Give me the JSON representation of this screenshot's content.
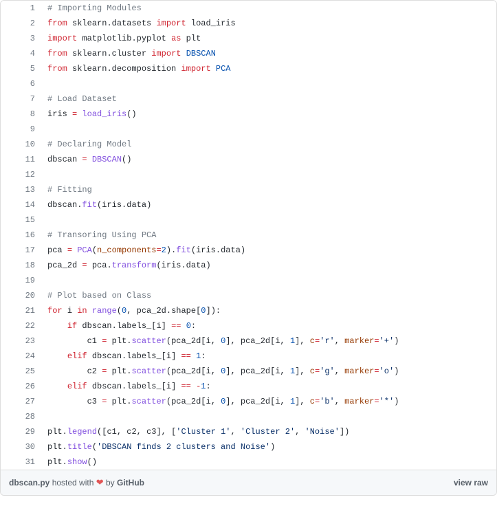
{
  "syntax_colors": {
    "comment": "#6e7781",
    "keyword": "#cf222e",
    "entity": "#8250df",
    "variable": "#953800",
    "constant": "#0550ae",
    "string": "#0a3069",
    "text": "#24292f",
    "linenum": "#6e7781",
    "meta_bg": "#f6f8fa",
    "border": "#ddd"
  },
  "lines": [
    [
      {
        "t": "# Importing Modules",
        "c": "pl-c"
      }
    ],
    [
      {
        "t": "from",
        "c": "pl-k"
      },
      {
        "t": " "
      },
      {
        "t": "sklearn",
        "c": "pl-smi"
      },
      {
        "t": "."
      },
      {
        "t": "datasets",
        "c": "pl-smi"
      },
      {
        "t": " "
      },
      {
        "t": "import",
        "c": "pl-k"
      },
      {
        "t": " "
      },
      {
        "t": "load_iris",
        "c": "pl-smi"
      }
    ],
    [
      {
        "t": "import",
        "c": "pl-k"
      },
      {
        "t": " "
      },
      {
        "t": "matplotlib",
        "c": "pl-smi"
      },
      {
        "t": "."
      },
      {
        "t": "pyplot",
        "c": "pl-smi"
      },
      {
        "t": " "
      },
      {
        "t": "as",
        "c": "pl-k"
      },
      {
        "t": " "
      },
      {
        "t": "plt",
        "c": "pl-smi"
      }
    ],
    [
      {
        "t": "from",
        "c": "pl-k"
      },
      {
        "t": " "
      },
      {
        "t": "sklearn",
        "c": "pl-smi"
      },
      {
        "t": "."
      },
      {
        "t": "cluster",
        "c": "pl-smi"
      },
      {
        "t": " "
      },
      {
        "t": "import",
        "c": "pl-k"
      },
      {
        "t": " "
      },
      {
        "t": "DBSCAN",
        "c": "pl-c1"
      }
    ],
    [
      {
        "t": "from",
        "c": "pl-k"
      },
      {
        "t": " "
      },
      {
        "t": "sklearn",
        "c": "pl-smi"
      },
      {
        "t": "."
      },
      {
        "t": "decomposition",
        "c": "pl-smi"
      },
      {
        "t": " "
      },
      {
        "t": "import",
        "c": "pl-k"
      },
      {
        "t": " "
      },
      {
        "t": "PCA",
        "c": "pl-c1"
      }
    ],
    [],
    [
      {
        "t": "# Load Dataset",
        "c": "pl-c"
      }
    ],
    [
      {
        "t": "iris",
        "c": "pl-smi"
      },
      {
        "t": " "
      },
      {
        "t": "=",
        "c": "pl-k"
      },
      {
        "t": " "
      },
      {
        "t": "load_iris",
        "c": "pl-en"
      },
      {
        "t": "()"
      }
    ],
    [],
    [
      {
        "t": "# Declaring Model",
        "c": "pl-c"
      }
    ],
    [
      {
        "t": "dbscan",
        "c": "pl-smi"
      },
      {
        "t": " "
      },
      {
        "t": "=",
        "c": "pl-k"
      },
      {
        "t": " "
      },
      {
        "t": "DBSCAN",
        "c": "pl-en"
      },
      {
        "t": "()"
      }
    ],
    [],
    [
      {
        "t": "# Fitting",
        "c": "pl-c"
      }
    ],
    [
      {
        "t": "dbscan",
        "c": "pl-smi"
      },
      {
        "t": "."
      },
      {
        "t": "fit",
        "c": "pl-en"
      },
      {
        "t": "("
      },
      {
        "t": "iris",
        "c": "pl-smi"
      },
      {
        "t": "."
      },
      {
        "t": "data",
        "c": "pl-smi"
      },
      {
        "t": ")"
      }
    ],
    [],
    [
      {
        "t": "# Transoring Using PCA",
        "c": "pl-c"
      }
    ],
    [
      {
        "t": "pca",
        "c": "pl-smi"
      },
      {
        "t": " "
      },
      {
        "t": "=",
        "c": "pl-k"
      },
      {
        "t": " "
      },
      {
        "t": "PCA",
        "c": "pl-en"
      },
      {
        "t": "("
      },
      {
        "t": "n_components",
        "c": "pl-v"
      },
      {
        "t": "=",
        "c": "pl-k"
      },
      {
        "t": "2",
        "c": "pl-c1"
      },
      {
        "t": ")."
      },
      {
        "t": "fit",
        "c": "pl-en"
      },
      {
        "t": "("
      },
      {
        "t": "iris",
        "c": "pl-smi"
      },
      {
        "t": "."
      },
      {
        "t": "data",
        "c": "pl-smi"
      },
      {
        "t": ")"
      }
    ],
    [
      {
        "t": "pca_2d",
        "c": "pl-smi"
      },
      {
        "t": " "
      },
      {
        "t": "=",
        "c": "pl-k"
      },
      {
        "t": " "
      },
      {
        "t": "pca",
        "c": "pl-smi"
      },
      {
        "t": "."
      },
      {
        "t": "transform",
        "c": "pl-en"
      },
      {
        "t": "("
      },
      {
        "t": "iris",
        "c": "pl-smi"
      },
      {
        "t": "."
      },
      {
        "t": "data",
        "c": "pl-smi"
      },
      {
        "t": ")"
      }
    ],
    [],
    [
      {
        "t": "# Plot based on Class",
        "c": "pl-c"
      }
    ],
    [
      {
        "t": "for",
        "c": "pl-k"
      },
      {
        "t": " "
      },
      {
        "t": "i",
        "c": "pl-smi"
      },
      {
        "t": " "
      },
      {
        "t": "in",
        "c": "pl-k"
      },
      {
        "t": " "
      },
      {
        "t": "range",
        "c": "pl-en"
      },
      {
        "t": "("
      },
      {
        "t": "0",
        "c": "pl-c1"
      },
      {
        "t": ", "
      },
      {
        "t": "pca_2d",
        "c": "pl-smi"
      },
      {
        "t": "."
      },
      {
        "t": "shape",
        "c": "pl-smi"
      },
      {
        "t": "["
      },
      {
        "t": "0",
        "c": "pl-c1"
      },
      {
        "t": "]):"
      }
    ],
    [
      {
        "t": "    "
      },
      {
        "t": "if",
        "c": "pl-k"
      },
      {
        "t": " "
      },
      {
        "t": "dbscan",
        "c": "pl-smi"
      },
      {
        "t": "."
      },
      {
        "t": "labels_",
        "c": "pl-smi"
      },
      {
        "t": "["
      },
      {
        "t": "i",
        "c": "pl-smi"
      },
      {
        "t": "] "
      },
      {
        "t": "==",
        "c": "pl-k"
      },
      {
        "t": " "
      },
      {
        "t": "0",
        "c": "pl-c1"
      },
      {
        "t": ":"
      }
    ],
    [
      {
        "t": "        "
      },
      {
        "t": "c1",
        "c": "pl-smi"
      },
      {
        "t": " "
      },
      {
        "t": "=",
        "c": "pl-k"
      },
      {
        "t": " "
      },
      {
        "t": "plt",
        "c": "pl-smi"
      },
      {
        "t": "."
      },
      {
        "t": "scatter",
        "c": "pl-en"
      },
      {
        "t": "("
      },
      {
        "t": "pca_2d",
        "c": "pl-smi"
      },
      {
        "t": "["
      },
      {
        "t": "i",
        "c": "pl-smi"
      },
      {
        "t": ", "
      },
      {
        "t": "0",
        "c": "pl-c1"
      },
      {
        "t": "], "
      },
      {
        "t": "pca_2d",
        "c": "pl-smi"
      },
      {
        "t": "["
      },
      {
        "t": "i",
        "c": "pl-smi"
      },
      {
        "t": ", "
      },
      {
        "t": "1",
        "c": "pl-c1"
      },
      {
        "t": "], "
      },
      {
        "t": "c",
        "c": "pl-v"
      },
      {
        "t": "=",
        "c": "pl-k"
      },
      {
        "t": "'r'",
        "c": "pl-s"
      },
      {
        "t": ", "
      },
      {
        "t": "marker",
        "c": "pl-v"
      },
      {
        "t": "=",
        "c": "pl-k"
      },
      {
        "t": "'+'",
        "c": "pl-s"
      },
      {
        "t": ")"
      }
    ],
    [
      {
        "t": "    "
      },
      {
        "t": "elif",
        "c": "pl-k"
      },
      {
        "t": " "
      },
      {
        "t": "dbscan",
        "c": "pl-smi"
      },
      {
        "t": "."
      },
      {
        "t": "labels_",
        "c": "pl-smi"
      },
      {
        "t": "["
      },
      {
        "t": "i",
        "c": "pl-smi"
      },
      {
        "t": "] "
      },
      {
        "t": "==",
        "c": "pl-k"
      },
      {
        "t": " "
      },
      {
        "t": "1",
        "c": "pl-c1"
      },
      {
        "t": ":"
      }
    ],
    [
      {
        "t": "        "
      },
      {
        "t": "c2",
        "c": "pl-smi"
      },
      {
        "t": " "
      },
      {
        "t": "=",
        "c": "pl-k"
      },
      {
        "t": " "
      },
      {
        "t": "plt",
        "c": "pl-smi"
      },
      {
        "t": "."
      },
      {
        "t": "scatter",
        "c": "pl-en"
      },
      {
        "t": "("
      },
      {
        "t": "pca_2d",
        "c": "pl-smi"
      },
      {
        "t": "["
      },
      {
        "t": "i",
        "c": "pl-smi"
      },
      {
        "t": ", "
      },
      {
        "t": "0",
        "c": "pl-c1"
      },
      {
        "t": "], "
      },
      {
        "t": "pca_2d",
        "c": "pl-smi"
      },
      {
        "t": "["
      },
      {
        "t": "i",
        "c": "pl-smi"
      },
      {
        "t": ", "
      },
      {
        "t": "1",
        "c": "pl-c1"
      },
      {
        "t": "], "
      },
      {
        "t": "c",
        "c": "pl-v"
      },
      {
        "t": "=",
        "c": "pl-k"
      },
      {
        "t": "'g'",
        "c": "pl-s"
      },
      {
        "t": ", "
      },
      {
        "t": "marker",
        "c": "pl-v"
      },
      {
        "t": "=",
        "c": "pl-k"
      },
      {
        "t": "'o'",
        "c": "pl-s"
      },
      {
        "t": ")"
      }
    ],
    [
      {
        "t": "    "
      },
      {
        "t": "elif",
        "c": "pl-k"
      },
      {
        "t": " "
      },
      {
        "t": "dbscan",
        "c": "pl-smi"
      },
      {
        "t": "."
      },
      {
        "t": "labels_",
        "c": "pl-smi"
      },
      {
        "t": "["
      },
      {
        "t": "i",
        "c": "pl-smi"
      },
      {
        "t": "] "
      },
      {
        "t": "==",
        "c": "pl-k"
      },
      {
        "t": " "
      },
      {
        "t": "-",
        "c": "pl-k"
      },
      {
        "t": "1",
        "c": "pl-c1"
      },
      {
        "t": ":"
      }
    ],
    [
      {
        "t": "        "
      },
      {
        "t": "c3",
        "c": "pl-smi"
      },
      {
        "t": " "
      },
      {
        "t": "=",
        "c": "pl-k"
      },
      {
        "t": " "
      },
      {
        "t": "plt",
        "c": "pl-smi"
      },
      {
        "t": "."
      },
      {
        "t": "scatter",
        "c": "pl-en"
      },
      {
        "t": "("
      },
      {
        "t": "pca_2d",
        "c": "pl-smi"
      },
      {
        "t": "["
      },
      {
        "t": "i",
        "c": "pl-smi"
      },
      {
        "t": ", "
      },
      {
        "t": "0",
        "c": "pl-c1"
      },
      {
        "t": "], "
      },
      {
        "t": "pca_2d",
        "c": "pl-smi"
      },
      {
        "t": "["
      },
      {
        "t": "i",
        "c": "pl-smi"
      },
      {
        "t": ", "
      },
      {
        "t": "1",
        "c": "pl-c1"
      },
      {
        "t": "], "
      },
      {
        "t": "c",
        "c": "pl-v"
      },
      {
        "t": "=",
        "c": "pl-k"
      },
      {
        "t": "'b'",
        "c": "pl-s"
      },
      {
        "t": ", "
      },
      {
        "t": "marker",
        "c": "pl-v"
      },
      {
        "t": "=",
        "c": "pl-k"
      },
      {
        "t": "'*'",
        "c": "pl-s"
      },
      {
        "t": ")"
      }
    ],
    [],
    [
      {
        "t": "plt",
        "c": "pl-smi"
      },
      {
        "t": "."
      },
      {
        "t": "legend",
        "c": "pl-en"
      },
      {
        "t": "(["
      },
      {
        "t": "c1",
        "c": "pl-smi"
      },
      {
        "t": ", "
      },
      {
        "t": "c2",
        "c": "pl-smi"
      },
      {
        "t": ", "
      },
      {
        "t": "c3",
        "c": "pl-smi"
      },
      {
        "t": "], ["
      },
      {
        "t": "'Cluster 1'",
        "c": "pl-s"
      },
      {
        "t": ", "
      },
      {
        "t": "'Cluster 2'",
        "c": "pl-s"
      },
      {
        "t": ", "
      },
      {
        "t": "'Noise'",
        "c": "pl-s"
      },
      {
        "t": "])"
      }
    ],
    [
      {
        "t": "plt",
        "c": "pl-smi"
      },
      {
        "t": "."
      },
      {
        "t": "title",
        "c": "pl-en"
      },
      {
        "t": "("
      },
      {
        "t": "'DBSCAN finds 2 clusters and Noise'",
        "c": "pl-s"
      },
      {
        "t": ")"
      }
    ],
    [
      {
        "t": "plt",
        "c": "pl-smi"
      },
      {
        "t": "."
      },
      {
        "t": "show",
        "c": "pl-en"
      },
      {
        "t": "()"
      }
    ]
  ],
  "meta": {
    "filename": "dbscan.py",
    "hosted_pre": " hosted with ",
    "heart": "❤",
    "hosted_post": " by ",
    "host": "GitHub",
    "view_raw": "view raw"
  }
}
